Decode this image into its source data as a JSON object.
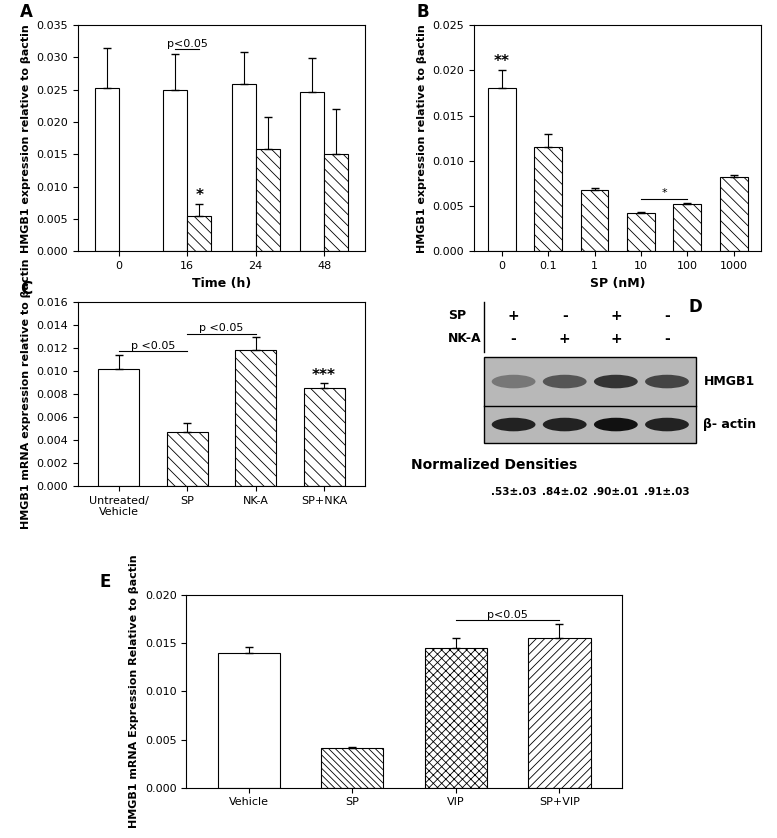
{
  "chart_data": [
    {
      "type": "bar",
      "title": "A",
      "categories": [
        "0",
        "16",
        "24",
        "48"
      ],
      "series": [
        {
          "color": "#ffffff",
          "values": [
            0.0253,
            0.0249,
            0.0259,
            0.0247
          ],
          "errors": [
            0.0062,
            0.0057,
            0.005,
            0.0052
          ]
        },
        {
          "color": "#ffffff",
          "values": [
            null,
            0.0055,
            0.0158,
            0.0151
          ],
          "errors": [
            null,
            0.0018,
            0.005,
            0.007
          ]
        }
      ],
      "x_label": "Time (h)",
      "y_label": "HMGB1 expression relative to βactin",
      "ylim": [
        0,
        0.035
      ],
      "yticks": [
        {
          "value": 0,
          "label": "0.000"
        },
        {
          "value": 0.005,
          "label": "0.005"
        },
        {
          "value": 0.01,
          "label": "0.010"
        },
        {
          "value": 0.015,
          "label": "0.015"
        },
        {
          "value": 0.02,
          "label": "0.020"
        },
        {
          "value": 0.025,
          "label": "0.025"
        },
        {
          "value": 0.03,
          "label": "0.030"
        },
        {
          "value": 0.035,
          "label": "0.035"
        }
      ],
      "annotations": [
        {
          "text": "p<0.05",
          "categories": [
            "16"
          ]
        },
        {
          "text": "*",
          "categories": [
            "16"
          ]
        }
      ]
    },
    {
      "type": "bar",
      "title": "B",
      "categories": [
        "0",
        "0.1",
        "1",
        "10",
        "100",
        "1000"
      ],
      "values": [
        0.018,
        0.0115,
        0.0068,
        0.0042,
        0.0052,
        0.0082
      ],
      "errors": [
        0.002,
        0.0015,
        0.0002,
        0.0002,
        0.0001,
        0.0002
      ],
      "colors": [
        "#ffffff",
        "#ffffff",
        "#ffffff",
        "#ffffff",
        "#ffffff",
        "#ffffff"
      ],
      "x_label": "SP (nM)",
      "y_label": "HMGB1 expression relative to βactin",
      "ylim": [
        0,
        0.025
      ],
      "yticks": [
        {
          "value": 0,
          "label": "0.000"
        },
        {
          "value": 0.005,
          "label": "0.005"
        },
        {
          "value": 0.01,
          "label": "0.010"
        },
        {
          "value": 0.015,
          "label": "0.015"
        },
        {
          "value": 0.02,
          "label": "0.020"
        },
        {
          "value": 0.025,
          "label": "0.025"
        }
      ],
      "annotations": [
        {
          "text": "**",
          "categories": [
            "0"
          ]
        },
        {
          "text": "*",
          "categories": [
            "10",
            "100"
          ]
        }
      ]
    },
    {
      "type": "bar",
      "title": "C",
      "categories": [
        "Untreated/\nVehicle",
        "SP",
        "NK-A",
        "SP+NKA"
      ],
      "values": [
        0.0102,
        0.0047,
        0.0118,
        0.0085
      ],
      "errors": [
        0.0012,
        0.0008,
        0.0011,
        0.0004
      ],
      "colors": [
        "#ffffff",
        "#ffffff",
        "#ffffff",
        "#ffffff"
      ],
      "y_label": "HMGB1 mRNA expression relative to βactin",
      "ylim": [
        0,
        0.016
      ],
      "yticks": [
        {
          "value": 0,
          "label": "0.000"
        },
        {
          "value": 0.002,
          "label": "0.002"
        },
        {
          "value": 0.004,
          "label": "0.004"
        },
        {
          "value": 0.006,
          "label": "0.006"
        },
        {
          "value": 0.008,
          "label": "0.008"
        },
        {
          "value": 0.01,
          "label": "0.010"
        },
        {
          "value": 0.012,
          "label": "0.012"
        },
        {
          "value": 0.014,
          "label": "0.014"
        },
        {
          "value": 0.016,
          "label": "0.016"
        }
      ],
      "annotations": [
        {
          "text": "p <0.05",
          "categories": [
            "Untreated/\nVehicle",
            "SP"
          ]
        },
        {
          "text": "p <0.05",
          "categories": [
            "SP",
            "NK-A"
          ]
        },
        {
          "text": "***",
          "categories": [
            "SP+NKA"
          ]
        }
      ]
    },
    {
      "type": "blot",
      "title": "D",
      "treatments": [
        {
          "label": "SP",
          "signs": [
            "+",
            "-",
            "+",
            "-"
          ]
        },
        {
          "label": "NK-A",
          "signs": [
            "-",
            "+",
            "+",
            "-"
          ]
        }
      ],
      "bands": [
        "HMGB1",
        "β- actin"
      ],
      "caption": "Normalized Densities",
      "densities": [
        ".53±.03",
        ".84±.02",
        ".90±.01",
        ".91±.03"
      ]
    },
    {
      "type": "bar",
      "title": "E",
      "categories": [
        "Vehicle",
        "SP",
        "VIP",
        "SP+VIP"
      ],
      "values": [
        0.014,
        0.0041,
        0.0145,
        0.0155
      ],
      "errors": [
        0.0006,
        0.0001,
        0.001,
        0.0015
      ],
      "colors": [
        "#ffffff",
        "#ffffff",
        "#ffffff",
        "#ffffff"
      ],
      "y_label": "HMGB1 mRNA Expression Relative to βactin",
      "ylim": [
        0,
        0.02
      ],
      "yticks": [
        {
          "value": 0,
          "label": "0.000"
        },
        {
          "value": 0.005,
          "label": "0.005"
        },
        {
          "value": 0.01,
          "label": "0.010"
        },
        {
          "value": 0.015,
          "label": "0.015"
        },
        {
          "value": 0.02,
          "label": "0.020"
        }
      ],
      "annotations": [
        {
          "text": "p<0.05",
          "categories": [
            "VIP",
            "SP+VIP"
          ]
        }
      ]
    }
  ]
}
